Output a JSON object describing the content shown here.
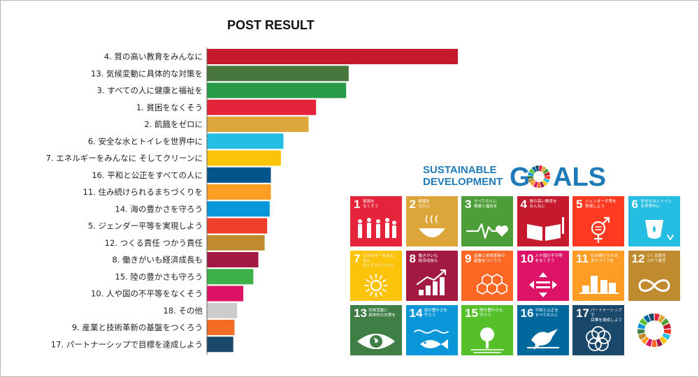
{
  "chart_data": {
    "type": "bar",
    "orientation": "horizontal",
    "title": "POST RESULT",
    "xlabel": "",
    "ylabel": "",
    "grid": false,
    "legend": "none",
    "xlim": [
      0,
      100
    ],
    "categories": [
      "4. 質の高い教育をみんなに",
      "13. 気候変動に具体的な対策を",
      "3. すべての人に健康と福祉を",
      "1. 貧困をなくそう",
      "2. 飢餓をゼロに",
      "6. 安全な水とトイレを世界中に",
      "7. エネルギーをみんなに  そしてクリーンに",
      "16. 平和と公正をすべての人に",
      "11. 住み続けられるまちづくりを",
      "14. 海の豊かさを守ろう",
      "5. ジェンダー平等を実現しよう",
      "12. つくる責任  つかう責任",
      "8. 働きがいも経済成長も",
      "15. 陸の豊かさも守ろう",
      "10. 人や国の不平等をなくそう",
      "18. その他",
      "9. 産業と技術革新の基盤をつくろう",
      "17. パートナーシップで目標を達成しよう"
    ],
    "values": [
      100,
      56.5,
      55.5,
      43.5,
      40.5,
      30.5,
      29.5,
      25.5,
      25.5,
      25.0,
      24.0,
      23.0,
      20.5,
      18.5,
      14.5,
      12.0,
      11.0,
      10.5
    ],
    "colors": [
      "#c5192d",
      "#48773e",
      "#279b48",
      "#e5243b",
      "#dda63a",
      "#26bde2",
      "#fcc30b",
      "#02558b",
      "#fd9d24",
      "#0a97d9",
      "#ef402b",
      "#bf8b2e",
      "#a21942",
      "#3eb049",
      "#dd1367",
      "#cccccc",
      "#f36d25",
      "#19486a"
    ]
  },
  "logo": {
    "line1": "SUSTAINABLE",
    "line2": "DEVELOPMENT",
    "big_left": "G",
    "big_right": "ALS",
    "wheel_colors": [
      "#e5243b",
      "#dda63a",
      "#4c9f38",
      "#c5192d",
      "#ff3a21",
      "#26bde2",
      "#fcc30b",
      "#a21942",
      "#fd6925",
      "#dd1367",
      "#fd9d24",
      "#bf8b2e",
      "#3f7e44",
      "#0a97d9",
      "#56c02b",
      "#00689d",
      "#19486a"
    ]
  },
  "goals": [
    {
      "num": "1",
      "title": "貧困を\nなくそう",
      "color": "#e5243b",
      "icon": "family-icon"
    },
    {
      "num": "2",
      "title": "飢餓を\nゼロに",
      "color": "#dda63a",
      "icon": "bowl-icon"
    },
    {
      "num": "3",
      "title": "すべての人に\n健康と福祉を",
      "color": "#4c9f38",
      "icon": "heartbeat-icon"
    },
    {
      "num": "4",
      "title": "質の高い教育を\nみんなに",
      "color": "#c5192d",
      "icon": "book-icon"
    },
    {
      "num": "5",
      "title": "ジェンダー平等を\n実現しよう",
      "color": "#ff3a21",
      "icon": "gender-icon"
    },
    {
      "num": "6",
      "title": "安全な水とトイレ\nを世界中に",
      "color": "#26bde2",
      "icon": "water-icon"
    },
    {
      "num": "7",
      "title": "エネルギーをみんなに\nそしてクリーンに",
      "color": "#fcc30b",
      "icon": "sun-icon"
    },
    {
      "num": "8",
      "title": "働きがいも\n経済成長も",
      "color": "#a21942",
      "icon": "growth-chart-icon"
    },
    {
      "num": "9",
      "title": "産業と技術革新の\n基盤をつくろう",
      "color": "#fd6925",
      "icon": "cubes-icon"
    },
    {
      "num": "10",
      "title": "人や国の不平等\nをなくそう",
      "color": "#dd1367",
      "icon": "equality-icon"
    },
    {
      "num": "11",
      "title": "住み続けられる\nまちづくりを",
      "color": "#fd9d24",
      "icon": "city-icon"
    },
    {
      "num": "12",
      "title": "つくる責任\nつかう責任",
      "color": "#bf8b2e",
      "icon": "infinity-icon"
    },
    {
      "num": "13",
      "title": "気候変動に\n具体的な対策を",
      "color": "#3f7e44",
      "icon": "eye-globe-icon"
    },
    {
      "num": "14",
      "title": "海の豊かさを\n守ろう",
      "color": "#0a97d9",
      "icon": "fish-icon"
    },
    {
      "num": "15",
      "title": "陸の豊かさも\n守ろう",
      "color": "#56c02b",
      "icon": "tree-icon"
    },
    {
      "num": "16",
      "title": "平和と公正を\nすべての人に",
      "color": "#00689d",
      "icon": "dove-icon"
    },
    {
      "num": "17",
      "title": "パートナーシップで\n目標を達成しよう",
      "color": "#19486a",
      "icon": "rings-icon"
    },
    {
      "num": "",
      "title": "",
      "color": "#ffffff",
      "icon": "sdg-wheel-icon"
    }
  ]
}
